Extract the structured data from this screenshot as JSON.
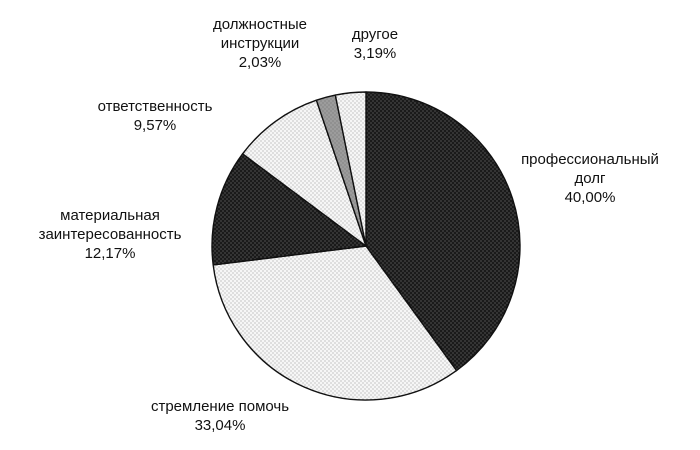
{
  "chart_data": {
    "type": "pie",
    "slices": [
      {
        "name": "профессиональный",
        "name2": "долг",
        "value": 40.0,
        "pct_label": "40,00%",
        "fill": "dark"
      },
      {
        "name": "стремление помочь",
        "name2": "",
        "value": 33.04,
        "pct_label": "33,04%",
        "fill": "light"
      },
      {
        "name": "материальная",
        "name2": "заинтересованность",
        "value": 12.17,
        "pct_label": "12,17%",
        "fill": "dark"
      },
      {
        "name": "ответственность",
        "name2": "",
        "value": 9.57,
        "pct_label": "9,57%",
        "fill": "light"
      },
      {
        "name": "должностные",
        "name2": "инструкции",
        "value": 2.03,
        "pct_label": "2,03%",
        "fill": "mid"
      },
      {
        "name": "другое",
        "name2": "",
        "value": 3.19,
        "pct_label": "3,19%",
        "fill": "light"
      }
    ],
    "title": "",
    "legend": "none"
  }
}
